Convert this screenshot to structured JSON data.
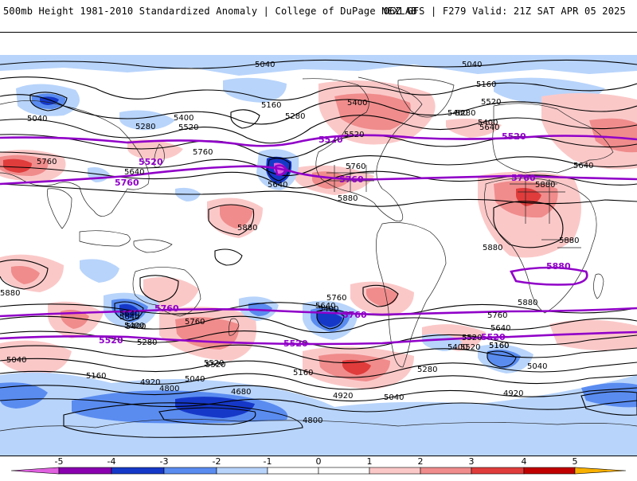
{
  "header": {
    "title": "500mb Height 1981-2010 Standardized Anomaly | College of DuPage NEXLAB",
    "run_info": "06Z GFS | F279 Valid: 21Z SAT APR 05 2025"
  },
  "colors": {
    "neg5": "#e060e0",
    "neg4": "#8a00b0",
    "neg3": "#1638c8",
    "neg2": "#5a8cf0",
    "neg1": "#b8d4fb",
    "pos1": "#fbc8c8",
    "pos2": "#f08c8c",
    "pos3": "#e03c3c",
    "pos4": "#c00000",
    "pos5": "#f8b000",
    "highlight_contour": "#9000c8"
  },
  "colorbar": {
    "ticks": [
      "-5",
      "-4",
      "-3",
      "-2",
      "-1",
      "0",
      "1",
      "2",
      "3",
      "4",
      "5"
    ]
  },
  "contour_labels": {
    "black": [
      "5040",
      "5040",
      "5160",
      "5040",
      "5400",
      "5280",
      "5400",
      "5520",
      "5280",
      "5160",
      "5400",
      "5520",
      "5640",
      "5760",
      "5640",
      "5760",
      "5880",
      "5880",
      "5880",
      "5880",
      "5280",
      "5400",
      "5520",
      "5640",
      "5760",
      "5640",
      "5880",
      "5880",
      "5400",
      "5520",
      "5640",
      "5760",
      "5640",
      "5400",
      "5280",
      "5760",
      "5640",
      "5760",
      "5880",
      "5640",
      "5520",
      "5160",
      "5400",
      "5520",
      "5520",
      "5400",
      "5040",
      "5160",
      "4920",
      "4800",
      "4680",
      "4800",
      "5040",
      "5160",
      "5280",
      "5040",
      "4920",
      "5040",
      "5160",
      "4920"
    ],
    "purple": [
      "5520",
      "5520",
      "5520",
      "5760",
      "5760",
      "5760",
      "5880",
      "5760",
      "5760",
      "5520",
      "5520",
      "5520"
    ]
  }
}
